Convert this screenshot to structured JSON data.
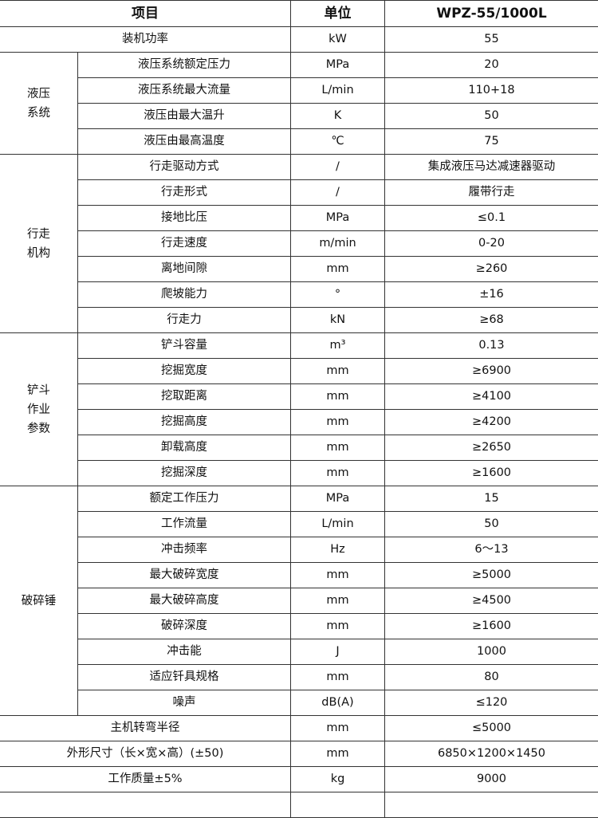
{
  "header": {
    "item": "项目",
    "unit": "单位",
    "model": "WPZ-55/1000L"
  },
  "top_rows": [
    {
      "item": "装机功率",
      "unit": "kW",
      "value": "55"
    }
  ],
  "groups": [
    {
      "name_lines": [
        "液压",
        "系统"
      ],
      "rows": [
        {
          "item": "液压系统额定压力",
          "unit": "MPa",
          "value": "20"
        },
        {
          "item": "液压系统最大流量",
          "unit": "L/min",
          "value": "110+18"
        },
        {
          "item": "液压由最大温升",
          "unit": "K",
          "value": "50"
        },
        {
          "item": "液压由最高温度",
          "unit": "℃",
          "value": "75"
        }
      ]
    },
    {
      "name_lines": [
        "行走",
        "机构"
      ],
      "rows": [
        {
          "item": "行走驱动方式",
          "unit": "/",
          "value": "集成液压马达减速器驱动"
        },
        {
          "item": "行走形式",
          "unit": "/",
          "value": "履带行走"
        },
        {
          "item": "接地比压",
          "unit": "MPa",
          "value": "≤0.1"
        },
        {
          "item": "行走速度",
          "unit": "m/min",
          "value": "0-20"
        },
        {
          "item": "离地间隙",
          "unit": "mm",
          "value": "≥260"
        },
        {
          "item": "爬坡能力",
          "unit": "°",
          "value": "±16"
        },
        {
          "item": "行走力",
          "unit": "kN",
          "value": "≥68"
        }
      ]
    },
    {
      "name_lines": [
        "铲斗",
        "作业",
        "参数"
      ],
      "rows": [
        {
          "item": "铲斗容量",
          "unit": "m³",
          "value": "0.13"
        },
        {
          "item": "挖掘宽度",
          "unit": "mm",
          "value": "≥6900"
        },
        {
          "item": "挖取距离",
          "unit": "mm",
          "value": "≥4100"
        },
        {
          "item": "挖掘高度",
          "unit": "mm",
          "value": "≥4200"
        },
        {
          "item": "卸载高度",
          "unit": "mm",
          "value": "≥2650"
        },
        {
          "item": "挖掘深度",
          "unit": "mm",
          "value": "≥1600"
        }
      ]
    },
    {
      "name_lines": [
        "破碎锤"
      ],
      "rows": [
        {
          "item": "额定工作压力",
          "unit": "MPa",
          "value": "15"
        },
        {
          "item": "工作流量",
          "unit": "L/min",
          "value": "50"
        },
        {
          "item": "冲击频率",
          "unit": "Hz",
          "value": "6～13"
        },
        {
          "item": "最大破碎宽度",
          "unit": "mm",
          "value": "≥5000"
        },
        {
          "item": "最大破碎高度",
          "unit": "mm",
          "value": "≥4500"
        },
        {
          "item": "破碎深度",
          "unit": "mm",
          "value": "≥1600"
        },
        {
          "item": "冲击能",
          "unit": "J",
          "value": "1000"
        },
        {
          "item": "适应钎具规格",
          "unit": "mm",
          "value": "80"
        },
        {
          "item": "噪声",
          "unit": "dB(A)",
          "value": "≤120"
        }
      ]
    }
  ],
  "bottom_rows": [
    {
      "item": "主机转弯半径",
      "unit": "mm",
      "value": "≤5000"
    },
    {
      "item": "外形尺寸（长×宽×高）(±50)",
      "unit": "mm",
      "value": "6850×1200×1450"
    },
    {
      "item": "工作质量±5%",
      "unit": "kg",
      "value": "9000"
    }
  ]
}
